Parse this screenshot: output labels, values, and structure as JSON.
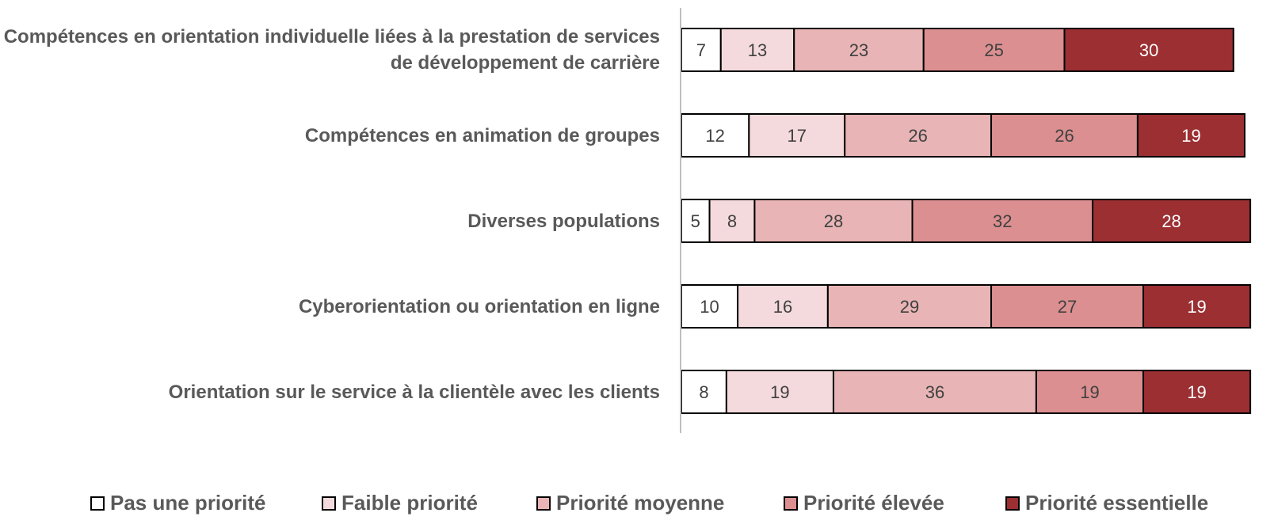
{
  "chart_data": {
    "type": "stacked-bar-horizontal",
    "categories": [
      "Compétences en orientation individuelle liées à la prestation de services de développement de carrière",
      "Compétences en animation de groupes",
      "Diverses populations",
      "Cyberorientation ou orientation en ligne",
      "Orientation sur le service à la clientèle avec les clients"
    ],
    "xlim": [
      0,
      100
    ],
    "legend": "bottom",
    "series": [
      {
        "name": "Pas une priorité",
        "color": "#ffffff",
        "values": [
          7,
          12,
          5,
          10,
          8
        ]
      },
      {
        "name": "Faible priorité",
        "color": "#f4dadc",
        "values": [
          13,
          17,
          8,
          16,
          19
        ]
      },
      {
        "name": "Priorité moyenne",
        "color": "#e8b4b5",
        "values": [
          23,
          26,
          28,
          29,
          36
        ]
      },
      {
        "name": "Priorité élevée",
        "color": "#dc8f90",
        "values": [
          25,
          26,
          32,
          27,
          19
        ]
      },
      {
        "name": "Priorité essentielle",
        "color": "#9b2f32",
        "values": [
          30,
          19,
          28,
          19,
          19
        ]
      }
    ]
  }
}
